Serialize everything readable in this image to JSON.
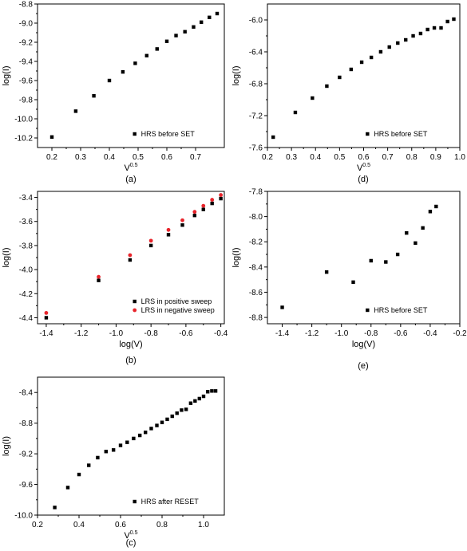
{
  "chart_data": [
    {
      "id": "a",
      "type": "scatter",
      "caption": "(a)",
      "xlabel": "V",
      "xlabel_sup": "0.5",
      "ylabel": "log(I)",
      "xlim": [
        0.15,
        0.8
      ],
      "ylim": [
        -10.3,
        -8.8
      ],
      "xticks": [
        0.2,
        0.3,
        0.4,
        0.5,
        0.6,
        0.7
      ],
      "yticks": [
        -10.2,
        -10.0,
        -9.8,
        -9.6,
        -9.4,
        -9.2,
        -9.0,
        -8.8
      ],
      "grid": false,
      "legend_position": "bottom-right",
      "series": [
        {
          "name": "HRS before SET",
          "marker": "square",
          "color": "#000000",
          "x": [
            0.2,
            0.283,
            0.346,
            0.4,
            0.447,
            0.49,
            0.53,
            0.566,
            0.6,
            0.632,
            0.663,
            0.693,
            0.72,
            0.748,
            0.775
          ],
          "y": [
            -10.19,
            -9.92,
            -9.76,
            -9.6,
            -9.51,
            -9.42,
            -9.34,
            -9.27,
            -9.19,
            -9.13,
            -9.09,
            -9.04,
            -8.99,
            -8.94,
            -8.9
          ]
        }
      ]
    },
    {
      "id": "d",
      "type": "scatter",
      "caption": "(d)",
      "xlabel": "V",
      "xlabel_sup": "0.5",
      "ylabel": "log(I)",
      "xlim": [
        0.2,
        1.0
      ],
      "ylim": [
        -7.6,
        -5.8
      ],
      "xticks": [
        0.2,
        0.3,
        0.4,
        0.5,
        0.6,
        0.7,
        0.8,
        0.9,
        1.0
      ],
      "yticks": [
        -7.6,
        -7.2,
        -6.8,
        -6.4,
        -6.0
      ],
      "grid": false,
      "legend_position": "bottom-right",
      "series": [
        {
          "name": "HRS before SET",
          "marker": "square",
          "color": "#000000",
          "x": [
            0.224,
            0.316,
            0.387,
            0.447,
            0.5,
            0.548,
            0.592,
            0.632,
            0.671,
            0.707,
            0.742,
            0.775,
            0.806,
            0.837,
            0.866,
            0.894,
            0.922,
            0.949,
            0.975
          ],
          "y": [
            -7.47,
            -7.16,
            -6.98,
            -6.83,
            -6.72,
            -6.62,
            -6.53,
            -6.47,
            -6.4,
            -6.34,
            -6.29,
            -6.25,
            -6.2,
            -6.17,
            -6.12,
            -6.1,
            -6.1,
            -6.02,
            -5.99
          ]
        }
      ]
    },
    {
      "id": "b",
      "type": "scatter",
      "caption": "(b)",
      "xlabel": "log(V)",
      "ylabel": "log(I)",
      "xlim": [
        -1.45,
        -0.38
      ],
      "ylim": [
        -4.45,
        -3.35
      ],
      "xticks": [
        -1.4,
        -1.2,
        -1.0,
        -0.8,
        -0.6,
        -0.4
      ],
      "yticks": [
        -4.4,
        -4.2,
        -4.0,
        -3.8,
        -3.6,
        -3.4
      ],
      "grid": false,
      "legend_position": "bottom-right",
      "series": [
        {
          "name": "LRS in positive sweep",
          "marker": "square",
          "color": "#000000",
          "x": [
            -1.4,
            -1.1,
            -0.92,
            -0.8,
            -0.7,
            -0.62,
            -0.55,
            -0.5,
            -0.45,
            -0.4
          ],
          "y": [
            -4.4,
            -4.09,
            -3.92,
            -3.8,
            -3.71,
            -3.63,
            -3.55,
            -3.5,
            -3.45,
            -3.41
          ]
        },
        {
          "name": "LRS in negative sweep",
          "marker": "circle",
          "color": "#e8242b",
          "x": [
            -1.4,
            -1.1,
            -0.92,
            -0.8,
            -0.7,
            -0.62,
            -0.55,
            -0.5,
            -0.45,
            -0.4
          ],
          "y": [
            -4.36,
            -4.06,
            -3.88,
            -3.76,
            -3.67,
            -3.59,
            -3.52,
            -3.47,
            -3.42,
            -3.38
          ]
        }
      ]
    },
    {
      "id": "e",
      "type": "scatter",
      "caption": "(e)",
      "xlabel": "log(V)",
      "ylabel": "log(I)",
      "xlim": [
        -1.5,
        -0.2
      ],
      "ylim": [
        -8.85,
        -7.8
      ],
      "xticks": [
        -1.4,
        -1.2,
        -1.0,
        -0.8,
        -0.6,
        -0.4,
        -0.2
      ],
      "yticks": [
        -8.8,
        -8.6,
        -8.4,
        -8.2,
        -8.0,
        -7.8
      ],
      "grid": false,
      "legend_position": "bottom-right",
      "series": [
        {
          "name": "HRS before SET",
          "marker": "square",
          "color": "#000000",
          "x": [
            -1.4,
            -1.1,
            -0.92,
            -0.8,
            -0.7,
            -0.62,
            -0.56,
            -0.5,
            -0.45,
            -0.4,
            -0.36
          ],
          "y": [
            -8.72,
            -8.44,
            -8.52,
            -8.35,
            -8.36,
            -8.3,
            -8.13,
            -8.21,
            -8.09,
            -7.96,
            -7.92
          ]
        }
      ]
    },
    {
      "id": "c",
      "type": "scatter",
      "caption": "(c)",
      "xlabel": "V",
      "xlabel_sup": "0.5",
      "ylabel": "log(I)",
      "xlim": [
        0.2,
        1.1
      ],
      "ylim": [
        -10.0,
        -8.2
      ],
      "xticks": [
        0.2,
        0.4,
        0.6,
        0.8,
        1.0
      ],
      "yticks": [
        -10.0,
        -9.6,
        -9.2,
        -8.8,
        -8.4
      ],
      "grid": false,
      "legend_position": "bottom-right",
      "series": [
        {
          "name": "HRS after RESET",
          "marker": "square",
          "color": "#000000",
          "x": [
            0.283,
            0.346,
            0.4,
            0.447,
            0.49,
            0.53,
            0.566,
            0.6,
            0.632,
            0.663,
            0.693,
            0.72,
            0.748,
            0.775,
            0.8,
            0.825,
            0.849,
            0.872,
            0.894,
            0.916,
            0.938,
            0.959,
            0.98,
            1.0,
            1.02,
            1.04,
            1.058
          ],
          "y": [
            -9.9,
            -9.64,
            -9.47,
            -9.35,
            -9.25,
            -9.17,
            -9.15,
            -9.09,
            -9.05,
            -9.0,
            -8.96,
            -8.92,
            -8.87,
            -8.83,
            -8.79,
            -8.75,
            -8.71,
            -8.67,
            -8.63,
            -8.62,
            -8.54,
            -8.51,
            -8.48,
            -8.45,
            -8.39,
            -8.38,
            -8.38
          ]
        }
      ]
    }
  ]
}
